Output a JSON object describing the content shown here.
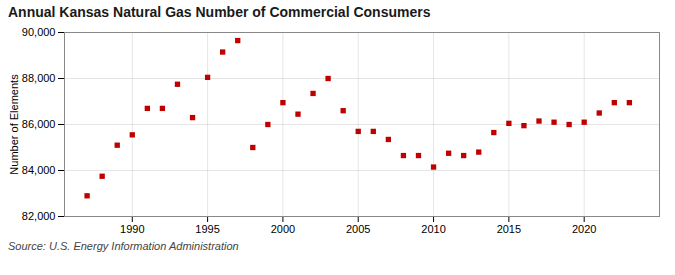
{
  "chart_data": {
    "type": "scatter",
    "title": "Annual Kansas Natural Gas Number of Commercial Consumers",
    "ylabel": "Number of Elements",
    "caption": "Source: U.S. Energy Information Administration",
    "x": [
      1987,
      1988,
      1989,
      1990,
      1991,
      1992,
      1993,
      1994,
      1995,
      1996,
      1997,
      1998,
      1999,
      2000,
      2001,
      2002,
      2003,
      2004,
      2005,
      2006,
      2007,
      2008,
      2009,
      2010,
      2011,
      2012,
      2013,
      2014,
      2015,
      2016,
      2017,
      2018,
      2019,
      2020,
      2021,
      2022,
      2023
    ],
    "values": [
      82900,
      83750,
      85100,
      85550,
      86700,
      86700,
      87750,
      86300,
      88050,
      89150,
      89650,
      85000,
      86000,
      86950,
      86450,
      87350,
      88000,
      86600,
      85700,
      85700,
      85350,
      84650,
      84650,
      84150,
      84750,
      84650,
      84800,
      85650,
      86050,
      85950,
      86150,
      86100,
      86000,
      86100,
      86500,
      86950,
      86950
    ],
    "color": "#C00000",
    "marker": "square",
    "xlim": [
      1985.5,
      2025
    ],
    "xticks": [
      1990,
      1995,
      2000,
      2005,
      2010,
      2015,
      2020
    ],
    "ylim": [
      82000,
      90000
    ],
    "yticks": [
      {
        "value": 82000,
        "label": "82,000"
      },
      {
        "value": 84000,
        "label": "84,000"
      },
      {
        "value": 86000,
        "label": "86,000"
      },
      {
        "value": 88000,
        "label": "88,000"
      },
      {
        "value": 90000,
        "label": "90,000"
      }
    ],
    "grid": true
  }
}
